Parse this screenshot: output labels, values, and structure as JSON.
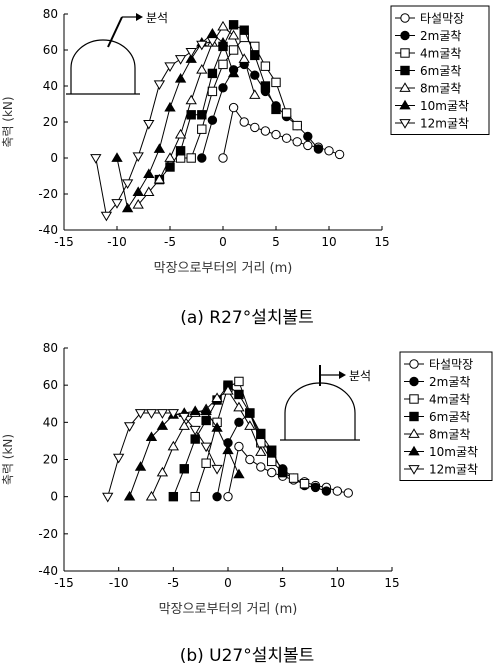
{
  "figure_captions": [
    "(a) R27°설치볼트",
    "(b) U27°설치볼트"
  ],
  "chart_data": [
    {
      "type": "line",
      "title": "",
      "xlabel": "막장으로부터의 거리 (m)",
      "ylabel": "축력 (kN)",
      "xlim": [
        -15,
        15
      ],
      "ylim": [
        -40,
        80
      ],
      "xticks": [
        -15,
        -10,
        -5,
        0,
        5,
        10,
        15
      ],
      "yticks": [
        -40,
        -20,
        0,
        20,
        40,
        60,
        80
      ],
      "grid": false,
      "legend_position": "top-right",
      "inset_label": "분석",
      "series": [
        {
          "name": "타설막장",
          "marker": "circle-open",
          "x": [
            0,
            1,
            2,
            3,
            4,
            5,
            6,
            7,
            8,
            9,
            10,
            11
          ],
          "y": [
            0,
            28,
            20,
            17,
            15,
            13,
            11,
            9,
            7,
            6,
            4,
            2
          ]
        },
        {
          "name": "2m굴착",
          "marker": "circle-filled",
          "x": [
            -2,
            -1,
            0,
            1,
            2,
            3,
            4,
            5,
            6,
            7,
            8,
            9
          ],
          "y": [
            0,
            21,
            39,
            49,
            52,
            46,
            37,
            29,
            23,
            18,
            12,
            5
          ]
        },
        {
          "name": "4m굴착",
          "marker": "square-open",
          "x": [
            -4,
            -3,
            -2,
            -1,
            0,
            1,
            2,
            3,
            4,
            5,
            6,
            7
          ],
          "y": [
            0,
            0,
            16,
            37,
            52,
            60,
            67,
            62,
            51,
            42,
            25,
            18
          ]
        },
        {
          "name": "6m굴착",
          "marker": "square-filled",
          "x": [
            -6,
            -5,
            -4,
            -3,
            -2,
            -1,
            0,
            1,
            2,
            3,
            4,
            5
          ],
          "y": [
            -12,
            -5,
            4,
            24,
            24,
            47,
            62,
            74,
            71,
            57,
            40,
            27
          ]
        },
        {
          "name": "8m굴착",
          "marker": "triangle-up-open",
          "x": [
            -8,
            -7,
            -6,
            -5,
            -4,
            -3,
            -2,
            -1,
            0,
            1,
            2,
            3
          ],
          "y": [
            -26,
            -19,
            -12,
            0,
            13,
            32,
            49,
            64,
            73,
            68,
            55,
            35
          ]
        },
        {
          "name": "10m굴착",
          "marker": "triangle-up-filled",
          "x": [
            -10,
            -9,
            -8,
            -7,
            -6,
            -5,
            -4,
            -3,
            -2,
            -1,
            0,
            1
          ],
          "y": [
            0,
            -28,
            -19,
            -9,
            5,
            28,
            44,
            55,
            64,
            69,
            64,
            47
          ]
        },
        {
          "name": "12m굴착",
          "marker": "triangle-down-open",
          "x": [
            -12,
            -11,
            -10,
            -9,
            -8,
            -7,
            -6,
            -5,
            -4,
            -3,
            -2,
            -1
          ],
          "y": [
            0,
            -32,
            -25,
            -14,
            1,
            19,
            41,
            51,
            55,
            59,
            63,
            65
          ]
        }
      ]
    },
    {
      "type": "line",
      "title": "",
      "xlabel": "막장으로부터의 거리 (m)",
      "ylabel": "축력 (kN)",
      "xlim": [
        -15,
        15
      ],
      "ylim": [
        -40,
        80
      ],
      "xticks": [
        -15,
        -10,
        -5,
        0,
        5,
        10,
        15
      ],
      "yticks": [
        -40,
        -20,
        0,
        20,
        40,
        60,
        80
      ],
      "grid": false,
      "legend_position": "top-right",
      "inset_label": "분석",
      "series": [
        {
          "name": "타설막장",
          "marker": "circle-open",
          "x": [
            0,
            1,
            2,
            3,
            4,
            5,
            6,
            7,
            8,
            9,
            10,
            11
          ],
          "y": [
            0,
            27,
            20,
            16,
            13,
            11,
            9,
            8,
            6,
            5,
            3,
            2
          ]
        },
        {
          "name": "2m굴착",
          "marker": "circle-filled",
          "x": [
            -1,
            0,
            1,
            2,
            3,
            4,
            5,
            6,
            7,
            8,
            9
          ],
          "y": [
            0,
            29,
            40,
            45,
            32,
            22,
            15,
            10,
            6,
            5,
            3
          ]
        },
        {
          "name": "4m굴착",
          "marker": "square-open",
          "x": [
            -3,
            -2,
            -1,
            0,
            1,
            2,
            3,
            4,
            5,
            6,
            7
          ],
          "y": [
            0,
            18,
            40,
            59,
            62,
            45,
            29,
            19,
            13,
            10,
            7
          ]
        },
        {
          "name": "6m굴착",
          "marker": "square-filled",
          "x": [
            -5,
            -4,
            -3,
            -2,
            -1,
            0,
            1,
            2,
            3,
            4,
            5
          ],
          "y": [
            0,
            15,
            31,
            41,
            52,
            60,
            55,
            45,
            34,
            25,
            13
          ]
        },
        {
          "name": "8m굴착",
          "marker": "triangle-up-open",
          "x": [
            -7,
            -6,
            -5,
            -4,
            -3,
            -2,
            -1,
            0,
            1,
            2,
            3
          ],
          "y": [
            0,
            13,
            27,
            38,
            45,
            47,
            53,
            57,
            48,
            38,
            24
          ]
        },
        {
          "name": "10m굴착",
          "marker": "triangle-up-filled",
          "x": [
            -9,
            -8,
            -7,
            -6,
            -5,
            -4,
            -3,
            -2,
            -1,
            0,
            1
          ],
          "y": [
            0,
            16,
            32,
            38,
            44,
            45,
            46,
            46,
            37,
            25,
            12
          ]
        },
        {
          "name": "12m굴착",
          "marker": "triangle-down-open",
          "x": [
            -11,
            -10,
            -9,
            -8,
            -7,
            -6,
            -5,
            -4,
            -3,
            -2,
            -1
          ],
          "y": [
            0,
            21,
            38,
            45,
            45,
            45,
            45,
            43,
            36,
            27,
            15
          ]
        }
      ]
    }
  ]
}
